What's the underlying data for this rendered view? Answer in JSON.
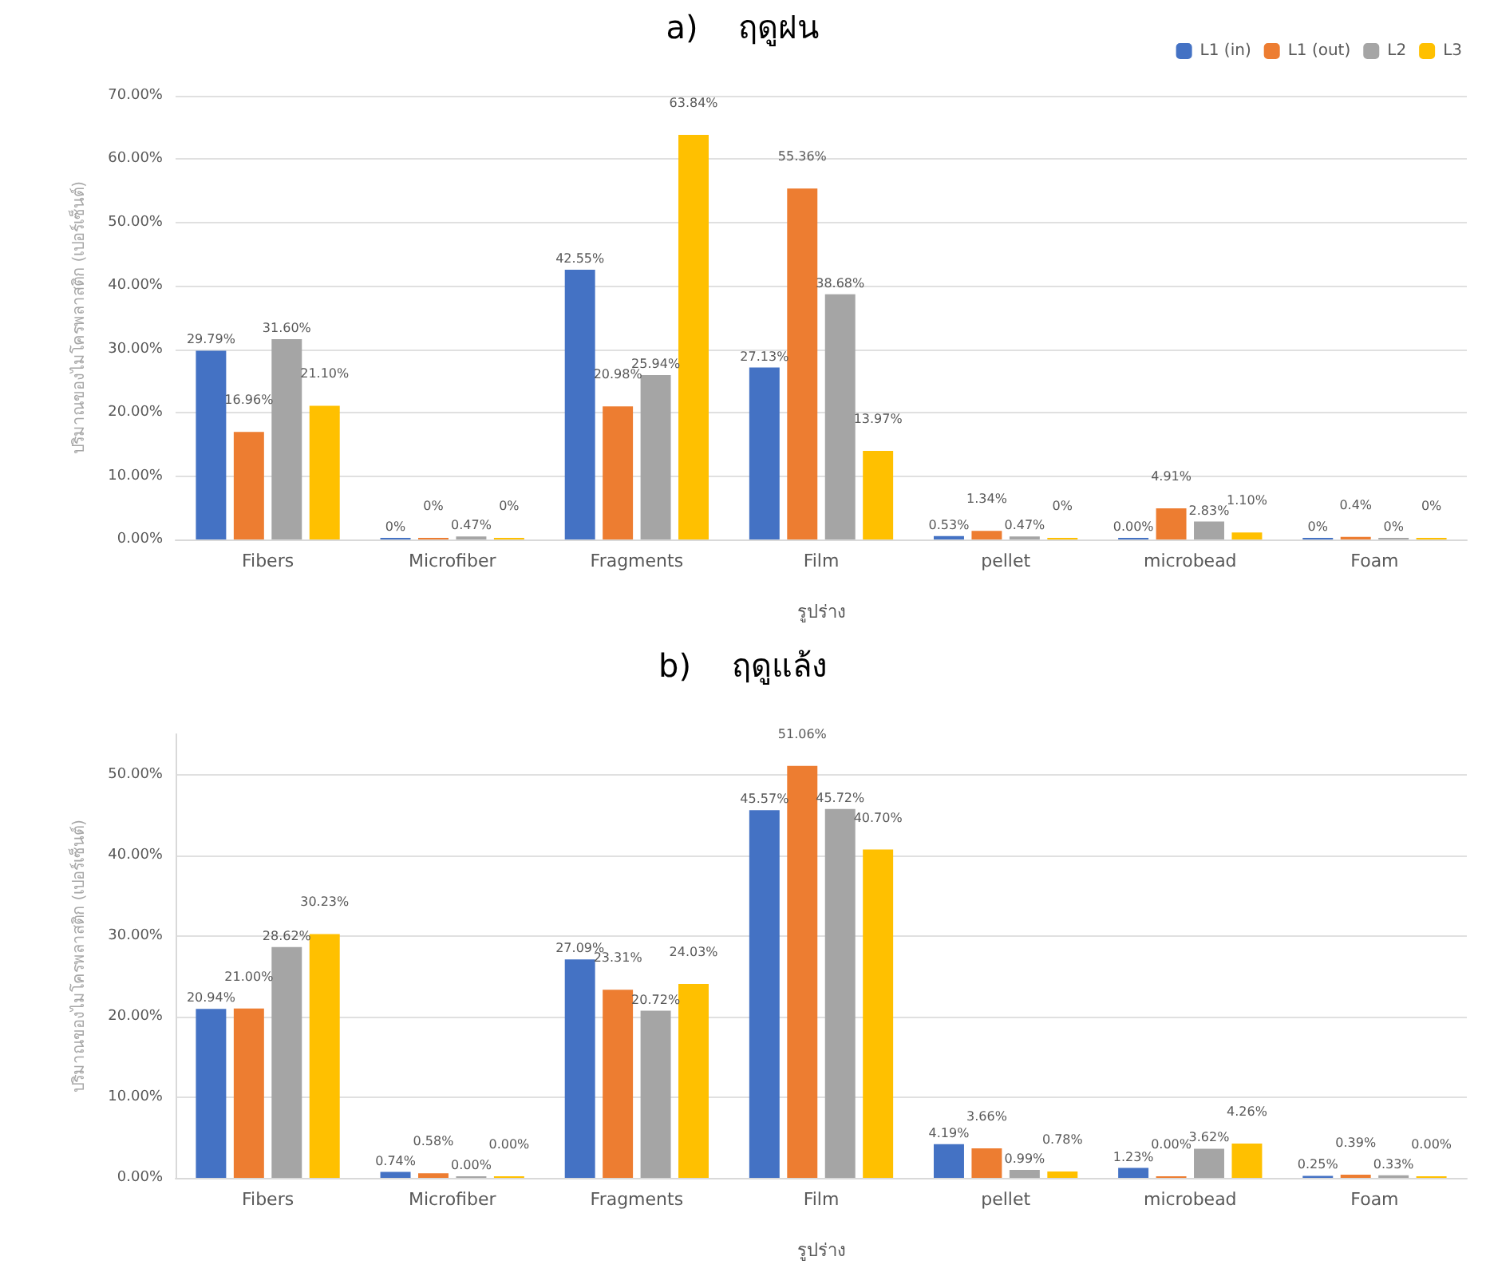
{
  "chart_data": [
    {
      "type": "bar",
      "title": "a)    ฤดูฝน",
      "xlabel": "รูปร่าง",
      "ylabel": "ปริมาณของไมโครพลาสติก (เปอร์เซ็นต์)",
      "categories": [
        "Fibers",
        "Microfiber",
        "Fragments",
        "Film",
        "pellet",
        "microbead",
        "Foam"
      ],
      "series": [
        {
          "name": "L1 (in)",
          "color": "#4472c4",
          "values": [
            29.79,
            0,
            42.55,
            27.13,
            0.53,
            0,
            0
          ],
          "value_labels": [
            "29.79%",
            "0%",
            "42.55%",
            "27.13%",
            "0.53%",
            "0.00%",
            "0%"
          ]
        },
        {
          "name": "L1 (out)",
          "color": "#ed7d31",
          "values": [
            16.96,
            0,
            20.98,
            55.36,
            1.34,
            4.91,
            0.4
          ],
          "value_labels": [
            "16.96%",
            "0%",
            "20.98%",
            "55.36%",
            "1.34%",
            "4.91%",
            "0.4%"
          ]
        },
        {
          "name": "L2",
          "color": "#a5a5a5",
          "values": [
            31.6,
            0.47,
            25.94,
            38.68,
            0.47,
            2.83,
            0
          ],
          "value_labels": [
            "31.60%",
            "0.47%",
            "25.94%",
            "38.68%",
            "0.47%",
            "2.83%",
            "0%"
          ]
        },
        {
          "name": "L3",
          "color": "#ffc000",
          "values": [
            21.1,
            0,
            63.84,
            13.97,
            0,
            1.1,
            0
          ],
          "value_labels": [
            "21.10%",
            "0%",
            "63.84%",
            "13.97%",
            "0%",
            "1.10%",
            "0%"
          ]
        }
      ],
      "ylim": [
        0,
        70
      ],
      "yticks": [
        {
          "value": 0,
          "label": "0.00%"
        },
        {
          "value": 10,
          "label": "10.00%"
        },
        {
          "value": 20,
          "label": "20.00%"
        },
        {
          "value": 30,
          "label": "30.00%"
        },
        {
          "value": 40,
          "label": "40.00%"
        },
        {
          "value": 50,
          "label": "50.00%"
        },
        {
          "value": 60,
          "label": "60.00%"
        },
        {
          "value": 70,
          "label": "70.00%"
        }
      ],
      "grid": "y",
      "legend": "top right"
    },
    {
      "type": "bar",
      "title": "b)    ฤดูแล้ง",
      "xlabel": "รูปร่าง",
      "ylabel": "ปริมาณของไมโครพลาสติก (เปอร์เซ็นต์)",
      "categories": [
        "Fibers",
        "Microfiber",
        "Fragments",
        "Film",
        "pellet",
        "microbead",
        "Foam"
      ],
      "series": [
        {
          "color": "#4472c4",
          "values": [
            20.94,
            0.74,
            27.09,
            45.57,
            4.19,
            1.23,
            0.25
          ],
          "value_labels": [
            "20.94%",
            "0.74%",
            "27.09%",
            "45.57%",
            "4.19%",
            "1.23%",
            "0.25%"
          ]
        },
        {
          "color": "#ed7d31",
          "values": [
            21.0,
            0.58,
            23.31,
            51.06,
            3.66,
            0,
            0.39
          ],
          "value_labels": [
            "21.00%",
            "0.58%",
            "23.31%",
            "51.06%",
            "3.66%",
            "0.00%",
            "0.39%"
          ]
        },
        {
          "color": "#a5a5a5",
          "values": [
            28.62,
            0,
            20.72,
            45.72,
            0.99,
            3.62,
            0.33
          ],
          "value_labels": [
            "28.62%",
            "0.00%",
            "20.72%",
            "45.72%",
            "0.99%",
            "3.62%",
            "0.33%"
          ]
        },
        {
          "color": "#ffc000",
          "values": [
            30.23,
            0,
            24.03,
            40.7,
            0.78,
            4.26,
            0
          ],
          "value_labels": [
            "30.23%",
            "0.00%",
            "24.03%",
            "40.70%",
            "0.78%",
            "4.26%",
            "0.00%"
          ]
        }
      ],
      "ylim": [
        0,
        55
      ],
      "yticks": [
        {
          "value": 0,
          "label": "0.00%"
        },
        {
          "value": 10,
          "label": "10.00%"
        },
        {
          "value": 20,
          "label": "20.00%"
        },
        {
          "value": 30,
          "label": "30.00%"
        },
        {
          "value": 40,
          "label": "40.00%"
        },
        {
          "value": 50,
          "label": "50.00%"
        }
      ],
      "grid": "y"
    }
  ]
}
